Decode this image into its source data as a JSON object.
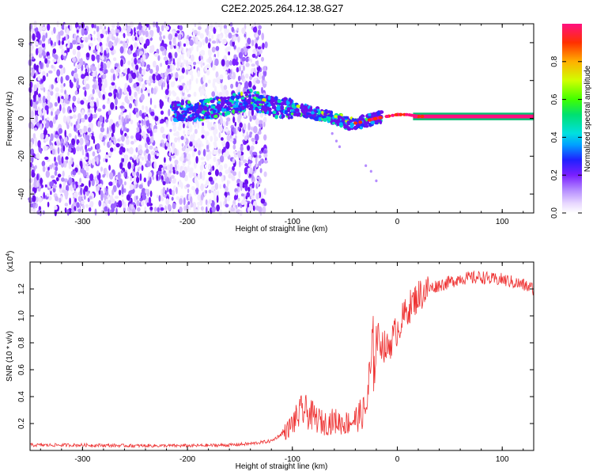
{
  "chart_data": [
    {
      "type": "heatmap",
      "title": "C2E2.2025.264.12.38.G27",
      "xlabel": "Height of straight line (km)",
      "ylabel": "Frequency (Hz)",
      "xlim": [
        -350,
        130
      ],
      "ylim": [
        -50,
        50
      ],
      "xticks": [
        -300,
        -200,
        -100,
        0,
        100
      ],
      "xtick_labels": [
        "-300",
        "-200",
        "-100",
        "0",
        "100"
      ],
      "yticks": [
        -40,
        -20,
        0,
        20,
        40
      ],
      "ytick_labels": [
        "-40",
        "-20",
        "0",
        "20",
        "40"
      ],
      "colorbar": {
        "label": "Normalized spectral amplitude",
        "range": [
          0,
          1
        ],
        "ticks": [
          0.0,
          0.2,
          0.4,
          0.6,
          0.8
        ],
        "tick_labels": [
          "0.0",
          "0.2",
          "0.4",
          "0.6",
          "0.8"
        ]
      },
      "noise_region_x": [
        -350,
        -125
      ],
      "signal_trace": {
        "x": [
          -210,
          -190,
          -170,
          -150,
          -140,
          -130,
          -120,
          -100,
          -80,
          -60,
          -45,
          -35,
          -20,
          -10,
          0,
          10,
          20,
          50,
          80,
          100,
          130
        ],
        "freq": [
          4,
          4,
          6,
          8,
          10,
          8,
          6,
          5,
          3,
          0,
          -3,
          -2,
          0,
          1,
          2,
          2,
          1,
          1,
          1,
          1,
          1
        ]
      }
    },
    {
      "type": "line",
      "xlabel": "Height of straight line (km)",
      "ylabel": "SNR (10 * v/v)",
      "y_multiplier": "(x10",
      "y_multiplier_exp": "4",
      "y_multiplier_close": ")",
      "xlim": [
        -350,
        130
      ],
      "ylim": [
        0,
        14000
      ],
      "xticks": [
        -300,
        -200,
        -100,
        0,
        100
      ],
      "xtick_labels": [
        "-300",
        "-200",
        "-100",
        "0",
        "100"
      ],
      "yticks": [
        2000,
        4000,
        6000,
        8000,
        10000,
        12000
      ],
      "ytick_labels": [
        "0.2",
        "0.4",
        "0.6",
        "0.8",
        "1.0",
        "1.2"
      ],
      "color": "#ee3333",
      "series_profile": {
        "x": [
          -350,
          -300,
          -250,
          -200,
          -160,
          -140,
          -120,
          -105,
          -90,
          -80,
          -70,
          -60,
          -50,
          -40,
          -30,
          -25,
          -20,
          -10,
          0,
          10,
          20,
          30,
          40,
          50,
          60,
          70,
          80,
          90,
          100,
          110,
          120,
          130
        ],
        "y": [
          400,
          400,
          350,
          350,
          400,
          500,
          700,
          1500,
          3000,
          2500,
          2000,
          2200,
          2000,
          2300,
          3000,
          6000,
          8500,
          7500,
          9000,
          10500,
          11500,
          12000,
          12300,
          12500,
          12800,
          12800,
          12900,
          12700,
          12700,
          12500,
          12300,
          12000
        ]
      }
    }
  ]
}
